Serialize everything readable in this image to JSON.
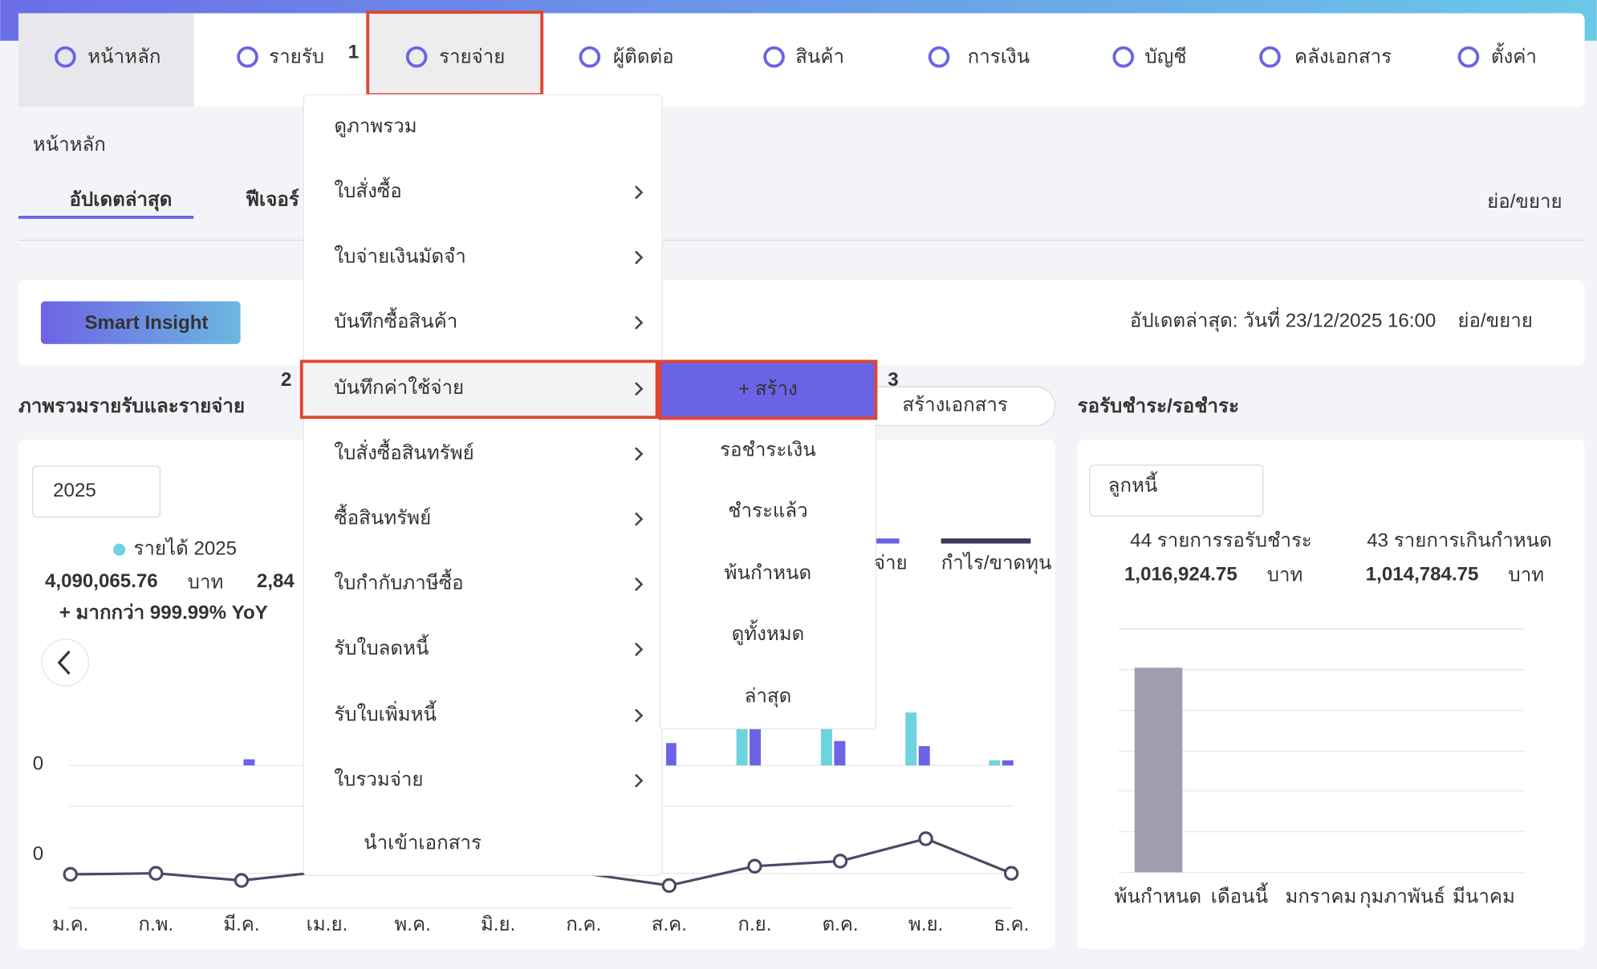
{
  "nav": [
    "หน้าหลัก",
    "รายรับ",
    "รายจ่าย",
    "ผู้ติดต่อ",
    "สินค้า",
    "การเงิน",
    "บัญชี",
    "คลังเอกสาร",
    "ตั้งค่า"
  ],
  "annotations": [
    "1",
    "2",
    "3"
  ],
  "breadcrumb": "หน้าหลัก",
  "tabs": [
    "อัปเดตล่าสุด",
    "ฟีเจอร์"
  ],
  "collapse": "ย่อ/ขยาย",
  "insight": {
    "button": "Smart Insight",
    "updated": "อัปเดตล่าสุด: วันที่ 23/12/2025 16:00"
  },
  "overview": {
    "title": "ภาพรวมรายรับและรายจ่าย",
    "create_doc": "สร้างเอกสาร",
    "year": "2025",
    "legend_income": "รายได้ 2025",
    "income": "4,090,065.76",
    "unit": "บาท",
    "expense_partial": "2,84",
    "yoy": "+ มากกว่า 999.99% YoY",
    "legend_expense_partial": "จ่าย",
    "legend_profit": "กำไร/ขาดทุน",
    "zero": "0",
    "months": [
      "ม.ค.",
      "ก.พ.",
      "มี.ค.",
      "เม.ย.",
      "พ.ค.",
      "มิ.ย.",
      "ก.ค.",
      "ส.ค.",
      "ก.ย.",
      "ต.ค.",
      "พ.ย.",
      "ธ.ค."
    ]
  },
  "receivable": {
    "title": "รอรับชำระ/รอชำระ",
    "select": "ลูกหนี้",
    "pending_label": "44 รายการรอรับชำระ",
    "pending_amount": "1,016,924.75",
    "overdue_label": "43 รายการเกินกำหนด",
    "overdue_amount": "1,014,784.75",
    "unit": "บาท",
    "categories": [
      "พ้นกำหนด",
      "เดือนนี้",
      "มกราคม",
      "กุมภาพันธ์",
      "มีนาคม"
    ]
  },
  "menu": [
    "ดูภาพรวม",
    "ใบสั่งซื้อ",
    "ใบจ่ายเงินมัดจำ",
    "บันทึกซื้อสินค้า",
    "บันทึกค่าใช้จ่าย",
    "ใบสั่งซื้อสินทรัพย์",
    "ซื้อสินทรัพย์",
    "ใบกำกับภาษีซื้อ",
    "รับใบลดหนี้",
    "รับใบเพิ่มหนี้",
    "ใบรวมจ่าย",
    "นำเข้าเอกสาร"
  ],
  "submenu": [
    "+ สร้าง",
    "รอชำระเงิน",
    "ชำระแล้ว",
    "พ้นกำหนด",
    "ดูทั้งหมด",
    "ล่าสุด"
  ]
}
